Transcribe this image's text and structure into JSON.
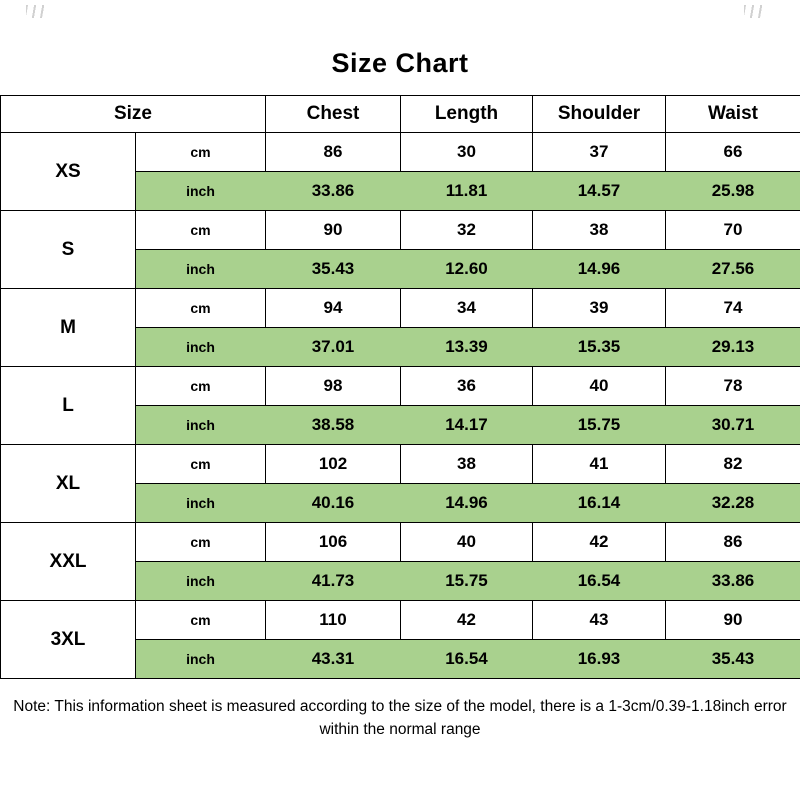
{
  "chart_data": {
    "type": "table",
    "title": "Size Chart",
    "columns": [
      "Size",
      "Chest",
      "Length",
      "Shoulder",
      "Waist"
    ],
    "unit_row_labels": [
      "cm",
      "inch"
    ],
    "sizes": [
      {
        "size": "XS",
        "cm": [
          "86",
          "30",
          "37",
          "66"
        ],
        "inch": [
          "33.86",
          "11.81",
          "14.57",
          "25.98"
        ]
      },
      {
        "size": "S",
        "cm": [
          "90",
          "32",
          "38",
          "70"
        ],
        "inch": [
          "35.43",
          "12.60",
          "14.96",
          "27.56"
        ]
      },
      {
        "size": "M",
        "cm": [
          "94",
          "34",
          "39",
          "74"
        ],
        "inch": [
          "37.01",
          "13.39",
          "15.35",
          "29.13"
        ]
      },
      {
        "size": "L",
        "cm": [
          "98",
          "36",
          "40",
          "78"
        ],
        "inch": [
          "38.58",
          "14.17",
          "15.75",
          "30.71"
        ]
      },
      {
        "size": "XL",
        "cm": [
          "102",
          "38",
          "41",
          "82"
        ],
        "inch": [
          "40.16",
          "14.96",
          "16.14",
          "32.28"
        ]
      },
      {
        "size": "XXL",
        "cm": [
          "106",
          "40",
          "42",
          "86"
        ],
        "inch": [
          "41.73",
          "15.75",
          "16.54",
          "33.86"
        ]
      },
      {
        "size": "3XL",
        "cm": [
          "110",
          "42",
          "43",
          "90"
        ],
        "inch": [
          "43.31",
          "16.54",
          "16.93",
          "35.43"
        ]
      }
    ],
    "highlight_color": "#a9d18e",
    "border_color": "#000000",
    "note": "Note: This information sheet is measured according to the size of the model, there is a 1-3cm/0.39-1.18inch error within the normal range"
  }
}
